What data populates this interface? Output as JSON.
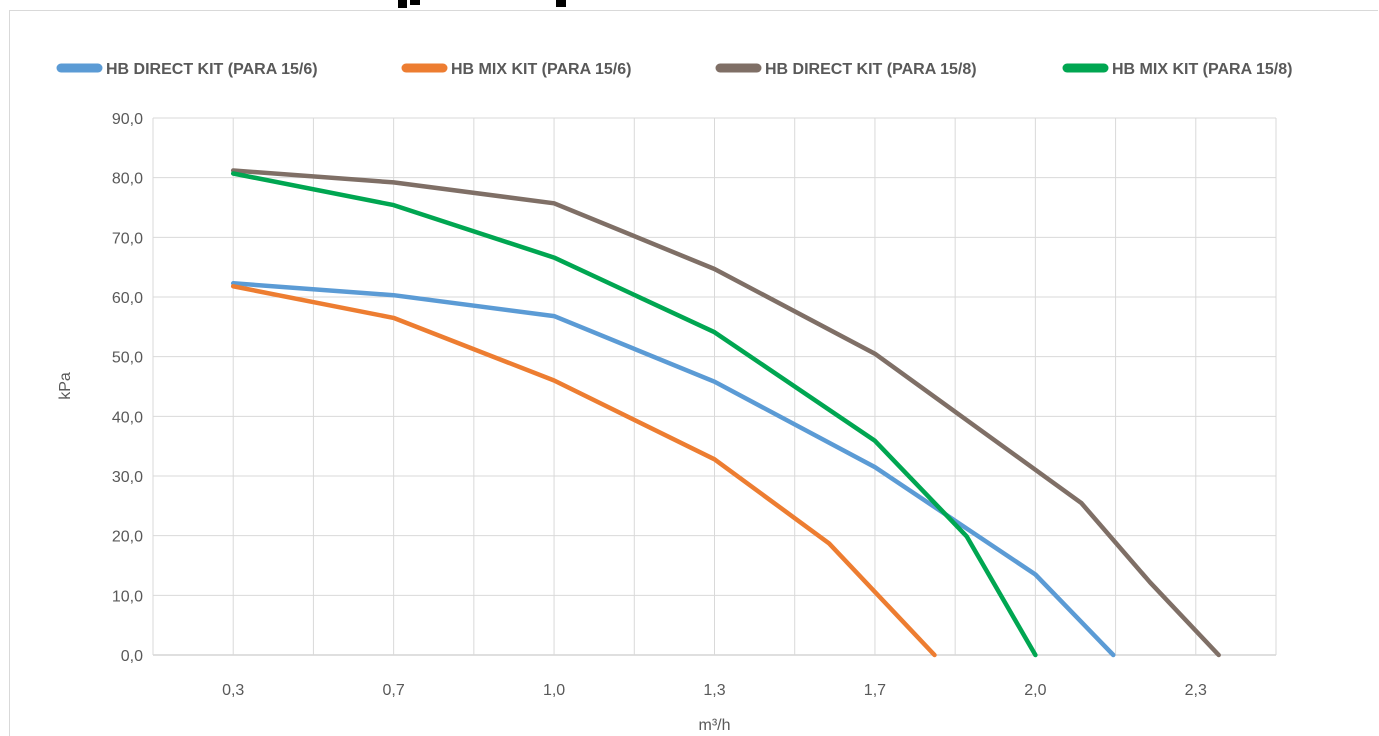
{
  "chart_data": {
    "type": "line",
    "title": "",
    "xlabel": "m³/h",
    "ylabel": "kPa",
    "ylim": [
      0,
      90
    ],
    "y_ticks": [
      "0,0",
      "10,0",
      "20,0",
      "30,0",
      "40,0",
      "50,0",
      "60,0",
      "70,0",
      "80,0",
      "90,0"
    ],
    "x_ticks": [
      "0,3",
      "0,7",
      "1,0",
      "1,3",
      "1,7",
      "2,0",
      "2,3"
    ],
    "x_ticks_values": [
      0.3,
      0.65,
      1.0,
      1.35,
      1.7,
      2.05,
      2.4
    ],
    "xlim": [
      0.125,
      2.575
    ],
    "grid": true,
    "legend_position": "top",
    "series": [
      {
        "name": "HB DIRECT KIT (PARA 15/6)",
        "color": "#5b9bd5",
        "x": [
          0.3,
          0.65,
          1.0,
          1.35,
          1.7,
          2.05,
          2.22
        ],
        "y": [
          62.3,
          60.3,
          56.8,
          45.8,
          31.5,
          13.5,
          0.0
        ]
      },
      {
        "name": "HB MIX KIT (PARA 15/6)",
        "color": "#ed7d31",
        "x": [
          0.3,
          0.65,
          1.0,
          1.35,
          1.6,
          1.83
        ],
        "y": [
          61.8,
          56.5,
          46.0,
          32.8,
          18.7,
          0.0
        ]
      },
      {
        "name": "HB DIRECT KIT (PARA 15/8)",
        "color": "#7f6f66",
        "x": [
          0.3,
          0.65,
          1.0,
          1.35,
          1.7,
          2.15,
          2.3,
          2.45
        ],
        "y": [
          81.2,
          79.2,
          75.7,
          64.7,
          50.5,
          25.5,
          12.2,
          0.0
        ]
      },
      {
        "name": "HB MIX KIT (PARA 15/8)",
        "color": "#00a651",
        "x": [
          0.3,
          0.65,
          1.0,
          1.35,
          1.7,
          1.9,
          2.05
        ],
        "y": [
          80.7,
          75.4,
          66.6,
          54.1,
          35.9,
          19.9,
          0.0
        ]
      }
    ]
  }
}
